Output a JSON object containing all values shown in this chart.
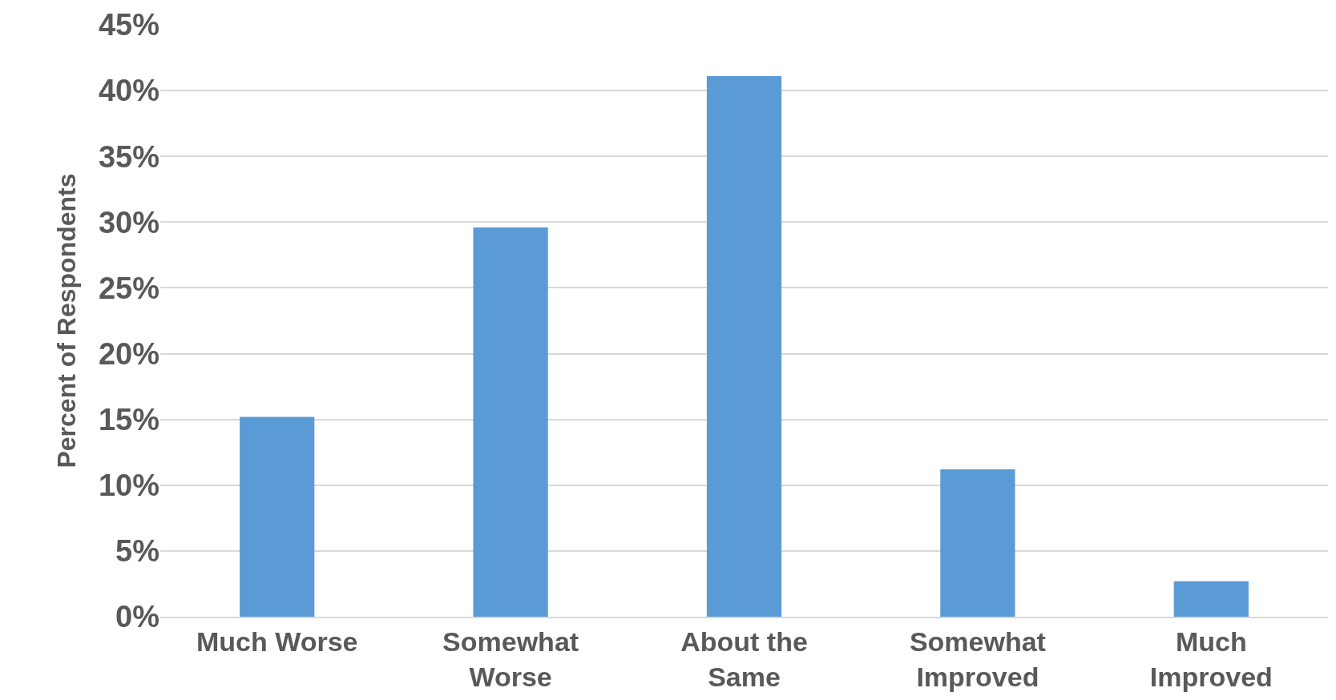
{
  "chart_data": {
    "type": "bar",
    "ylabel": "Percent of Respondents",
    "categories": [
      "Much Worse",
      "Somewhat Worse",
      "About the Same",
      "Somewhat Improved",
      "Much Improved"
    ],
    "values": [
      15.2,
      29.6,
      41.1,
      11.2,
      2.7
    ],
    "color": "#5b9bd5",
    "ylim": [
      0,
      45
    ],
    "yticks": [
      {
        "value": 0,
        "label": "0%"
      },
      {
        "value": 5,
        "label": "5%"
      },
      {
        "value": 10,
        "label": "10%"
      },
      {
        "value": 15,
        "label": "15%"
      },
      {
        "value": 20,
        "label": "20%"
      },
      {
        "value": 25,
        "label": "25%"
      },
      {
        "value": 30,
        "label": "30%"
      },
      {
        "value": 35,
        "label": "35%"
      },
      {
        "value": 40,
        "label": "40%"
      },
      {
        "value": 45,
        "label": "45%"
      }
    ],
    "grid": "y"
  }
}
